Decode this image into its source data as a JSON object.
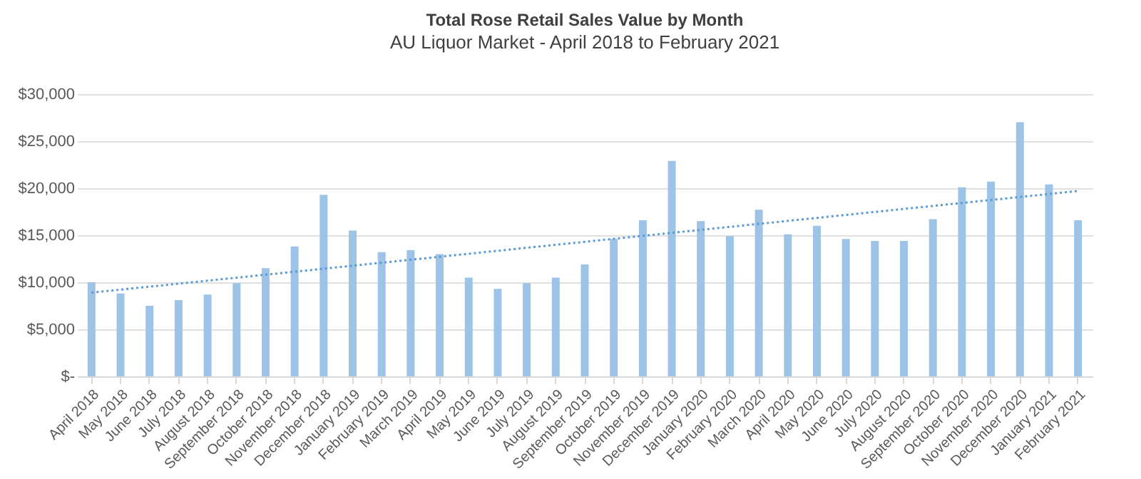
{
  "chart_data": {
    "type": "bar",
    "title": "Total Rose Retail Sales Value by Month",
    "subtitle": "AU Liquor Market - April 2018 to February 2021",
    "categories": [
      "April 2018",
      "May 2018",
      "June 2018",
      "July 2018",
      "August 2018",
      "September 2018",
      "October 2018",
      "November 2018",
      "December 2018",
      "January 2019",
      "February 2019",
      "March 2019",
      "April 2019",
      "May 2019",
      "June 2019",
      "July 2019",
      "August 2019",
      "September 2019",
      "October 2019",
      "November 2019",
      "December 2019",
      "January 2020",
      "February 2020",
      "March 2020",
      "April 2020",
      "May 2020",
      "June 2020",
      "July 2020",
      "August 2020",
      "September 2020",
      "October 2020",
      "November 2020",
      "December 2020",
      "January 2021",
      "February 2021"
    ],
    "series": [
      {
        "color": "#9dc3e6",
        "values": [
          10000,
          8800,
          7500,
          8100,
          8700,
          9900,
          11500,
          13800,
          19300,
          15500,
          13200,
          13400,
          13000,
          10500,
          9300,
          9900,
          10500,
          11900,
          14600,
          16600,
          22900,
          16500,
          14900,
          17700,
          15100,
          16000,
          14600,
          14400,
          14400,
          16700,
          20100,
          20700,
          27000,
          20400,
          16600
        ]
      },
      {
        "type": "line",
        "color": "#5b9bd5",
        "line_style": "dotted",
        "x": [
          "April 2018",
          "February 2021"
        ],
        "values": [
          8900,
          19700
        ]
      }
    ],
    "ylim": [
      0,
      30000
    ],
    "yticks": [
      {
        "value": 0,
        "label": "$-"
      },
      {
        "value": 5000,
        "label": "$5,000"
      },
      {
        "value": 10000,
        "label": "$10,000"
      },
      {
        "value": 15000,
        "label": "$15,000"
      },
      {
        "value": 20000,
        "label": "$20,000"
      },
      {
        "value": 25000,
        "label": "$25,000"
      },
      {
        "value": 30000,
        "label": "$30,000"
      }
    ],
    "grid": "y"
  }
}
